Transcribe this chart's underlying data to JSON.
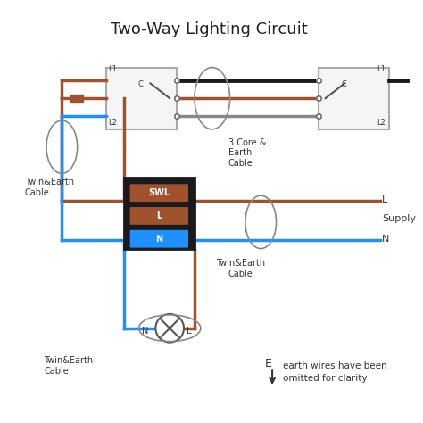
{
  "title": "Two-Way Lighting Circuit",
  "bg_color": "#ffffff",
  "brown": "#A0522D",
  "blue": "#1E90FF",
  "black": "#1a1a1a",
  "gray": "#888888",
  "dark_gray": "#555555",
  "switch_fill": "#f0f0f0",
  "box_fill": "#111111",
  "label_color": "#333333",
  "supply_label": "Supply",
  "cable1_label": "Twin&Earth\nCable",
  "cable2_label": "3 Core &\nEarth\nCable",
  "cable3_label": "Twin&Earth\nCable",
  "cable4_label": "Twin&Earth\nCable",
  "earth_note": "earth wires have been\nomitted for clarity",
  "earth_label": "E"
}
